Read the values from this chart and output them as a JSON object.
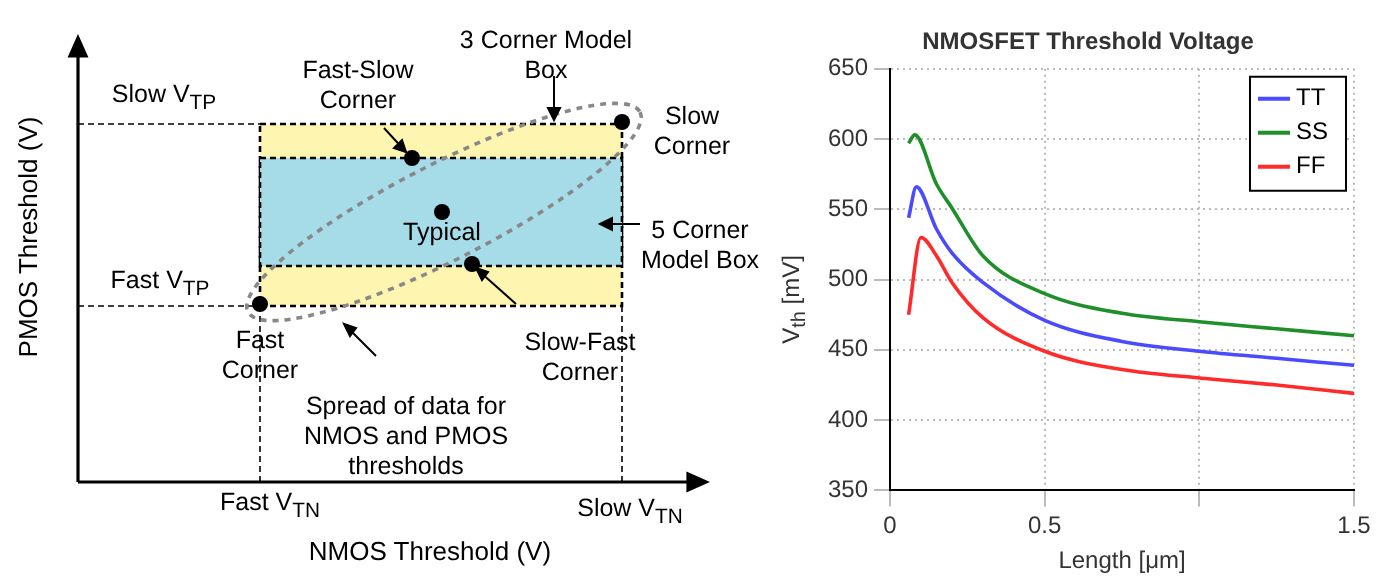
{
  "chart_data": [
    {
      "type": "other",
      "xlabel": "NMOS Threshold (V)",
      "ylabel": "PMOS Threshold (V)",
      "annotations": [
        "Slow V$_{TP}$",
        "Fast V$_{TP}$",
        "Fast V$_{TN}$",
        "Slow V$_{TN}$",
        "Fast-Slow Corner",
        "3 Corner Model Box",
        "Slow Corner",
        "Typical",
        "5 Corner Model Box",
        "Fast Corner",
        "Slow-Fast Corner",
        "Spread of data for NMOS and PMOS thresholds"
      ]
    },
    {
      "type": "line",
      "title": "NMOSFET Threshold Voltage",
      "xlabel": "Length [μm]",
      "ylabel": "V$_{th}$ [mV]",
      "xlim": [
        0,
        1.5
      ],
      "xticks": [
        0,
        0.5,
        {
          "value": 1,
          "label": null
        },
        1.5
      ],
      "ylim": [
        350,
        650
      ],
      "yticks": [
        350,
        400,
        450,
        500,
        550,
        600,
        650
      ],
      "grid": true,
      "legend": "top right",
      "series": [
        {
          "name": "TT",
          "color": "#4a4aff",
          "x": [
            0.06,
            0.085,
            0.15,
            0.2,
            0.3,
            0.5,
            0.75,
            1.0,
            1.25,
            1.5
          ],
          "values": [
            544,
            566,
            536,
            519,
            498,
            471,
            456,
            449,
            444,
            439
          ]
        },
        {
          "name": "SS",
          "color": "#1f8f2a",
          "x": [
            0.06,
            0.08,
            0.15,
            0.2,
            0.3,
            0.5,
            0.75,
            1.0,
            1.25,
            1.5
          ],
          "values": [
            597,
            603,
            568,
            551,
            517,
            490,
            476,
            470,
            465,
            460
          ]
        },
        {
          "name": "FF",
          "color": "#ff2a2a",
          "x": [
            0.06,
            0.1,
            0.15,
            0.2,
            0.3,
            0.5,
            0.75,
            1.0,
            1.25,
            1.5
          ],
          "values": [
            475,
            530,
            517,
            498,
            473,
            449,
            436,
            430,
            425,
            419
          ]
        }
      ]
    }
  ]
}
